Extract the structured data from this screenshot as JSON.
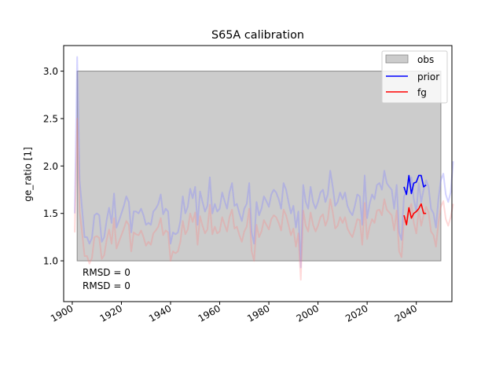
{
  "chart_data": {
    "type": "line",
    "title": "S65A calibration",
    "xlabel": "",
    "ylabel": "ge_ratio [1]",
    "xlim": [
      1896.5,
      2054.5
    ],
    "ylim": [
      0.57,
      3.27
    ],
    "x_ticks": [
      1900,
      1920,
      1940,
      1960,
      1980,
      2000,
      2020,
      2040
    ],
    "y_ticks": [
      "1.0",
      "1.5",
      "2.0",
      "2.5",
      "3.0"
    ],
    "legend_position": "top-right",
    "legend": [
      {
        "label": "obs",
        "kind": "patch",
        "color": "#bfbfbf"
      },
      {
        "label": "prior",
        "kind": "line",
        "color": "#0000ff"
      },
      {
        "label": "fg",
        "kind": "line",
        "color": "#ff0000"
      }
    ],
    "obs_band": {
      "x_start": 1902,
      "x_end": 2050,
      "y_low": 1.0,
      "y_high": 3.0,
      "color": "#cccccc",
      "edge": "#888888"
    },
    "annotations": [
      {
        "text": "RMSD = 0",
        "color": "#0000ff"
      },
      {
        "text": "RMSD = 0",
        "color": "#ff0000"
      }
    ],
    "background_series": [
      {
        "legend_key": "prior",
        "color": "#8080ff",
        "opacity": 0.35,
        "x_start": 1901,
        "values": [
          1.5,
          3.15,
          1.85,
          1.55,
          1.25,
          1.25,
          1.18,
          1.24,
          1.48,
          1.5,
          1.48,
          1.2,
          1.25,
          1.43,
          1.56,
          1.4,
          1.71,
          1.35,
          1.42,
          1.5,
          1.58,
          1.68,
          1.62,
          1.3,
          1.52,
          1.52,
          1.5,
          1.55,
          1.48,
          1.38,
          1.4,
          1.38,
          1.52,
          1.55,
          1.6,
          1.7,
          1.49,
          1.55,
          1.52,
          1.18,
          1.3,
          1.28,
          1.3,
          1.42,
          1.68,
          1.5,
          1.57,
          1.76,
          1.66,
          1.78,
          1.38,
          1.73,
          1.62,
          1.52,
          1.58,
          1.88,
          1.5,
          1.6,
          1.52,
          1.55,
          1.72,
          1.63,
          1.55,
          1.72,
          1.82,
          1.58,
          1.6,
          1.5,
          1.42,
          1.55,
          1.6,
          1.82,
          1.3,
          1.18,
          1.62,
          1.48,
          1.55,
          1.68,
          1.63,
          1.57,
          1.7,
          1.75,
          1.72,
          1.65,
          1.55,
          1.82,
          1.75,
          1.62,
          1.5,
          1.58,
          1.35,
          1.52,
          0.93,
          1.8,
          1.62,
          1.55,
          1.78,
          1.62,
          1.55,
          1.62,
          1.72,
          1.75,
          1.62,
          1.7,
          1.95,
          1.78,
          1.58,
          1.62,
          1.72,
          1.65,
          1.72,
          1.58,
          1.52,
          1.48,
          1.58,
          1.7,
          1.68,
          1.38,
          1.9,
          1.45,
          1.6,
          1.7,
          1.65,
          1.8,
          1.82,
          1.75,
          1.95,
          1.82,
          1.78,
          1.75,
          1.55,
          1.8,
          1.3,
          1.22,
          1.68,
          1.72,
          1.82,
          1.88,
          1.65,
          1.52,
          1.82,
          1.62,
          1.75,
          1.85,
          1.78,
          1.55,
          1.5,
          1.35,
          1.65,
          1.85,
          1.92,
          1.7,
          1.62,
          1.72,
          2.05
        ]
      },
      {
        "legend_key": "fg",
        "color": "#ff8080",
        "opacity": 0.3,
        "x_start": 1901,
        "values": [
          1.3,
          2.5,
          1.52,
          1.3,
          1.05,
          1.05,
          0.97,
          1.03,
          1.25,
          1.26,
          1.24,
          1.02,
          1.06,
          1.22,
          1.33,
          1.18,
          1.45,
          1.13,
          1.2,
          1.27,
          1.34,
          1.42,
          1.38,
          1.1,
          1.3,
          1.28,
          1.27,
          1.32,
          1.25,
          1.16,
          1.2,
          1.17,
          1.29,
          1.32,
          1.36,
          1.45,
          1.27,
          1.32,
          1.3,
          1.0,
          1.1,
          1.08,
          1.1,
          1.2,
          1.42,
          1.28,
          1.33,
          1.5,
          1.41,
          1.51,
          1.17,
          1.47,
          1.37,
          1.29,
          1.33,
          1.59,
          1.28,
          1.36,
          1.29,
          1.31,
          1.46,
          1.38,
          1.31,
          1.46,
          1.54,
          1.34,
          1.36,
          1.27,
          1.2,
          1.31,
          1.36,
          1.55,
          1.1,
          1.0,
          1.38,
          1.25,
          1.31,
          1.43,
          1.38,
          1.33,
          1.44,
          1.48,
          1.46,
          1.4,
          1.32,
          1.54,
          1.48,
          1.38,
          1.27,
          1.34,
          1.15,
          1.29,
          0.8,
          1.53,
          1.37,
          1.31,
          1.51,
          1.38,
          1.31,
          1.37,
          1.46,
          1.49,
          1.37,
          1.44,
          1.65,
          1.51,
          1.34,
          1.37,
          1.46,
          1.4,
          1.46,
          1.34,
          1.29,
          1.25,
          1.34,
          1.44,
          1.43,
          1.17,
          1.61,
          1.23,
          1.36,
          1.44,
          1.4,
          1.53,
          1.54,
          1.48,
          1.65,
          1.54,
          1.51,
          1.48,
          1.32,
          1.53,
          1.1,
          1.04,
          1.43,
          1.46,
          1.54,
          1.6,
          1.4,
          1.29,
          1.54,
          1.37,
          1.48,
          1.57,
          1.51,
          1.31,
          1.27,
          1.15,
          1.4,
          1.57,
          1.63,
          1.44,
          1.37,
          1.46,
          1.6
        ]
      }
    ],
    "series": [
      {
        "name": "prior",
        "color": "#0000ff",
        "x": [
          2035,
          2036,
          2037,
          2038,
          2039,
          2040,
          2041,
          2042,
          2043,
          2044
        ],
        "values": [
          1.78,
          1.7,
          1.9,
          1.71,
          1.82,
          1.83,
          1.9,
          1.9,
          1.78,
          1.8
        ]
      },
      {
        "name": "fg",
        "color": "#ff0000",
        "x": [
          2035,
          2036,
          2037,
          2038,
          2039,
          2040,
          2041,
          2042,
          2043,
          2044
        ],
        "values": [
          1.48,
          1.38,
          1.56,
          1.45,
          1.5,
          1.52,
          1.55,
          1.6,
          1.5,
          1.5
        ]
      }
    ]
  }
}
